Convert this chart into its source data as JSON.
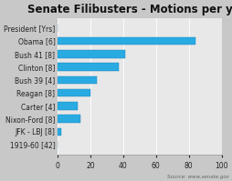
{
  "title": "Senate Filibusters - Motions per year",
  "categories": [
    "President [Yrs]",
    "Obama [6]",
    "Bush 41 [8]",
    "Clinton [8]",
    "Bush 39 [4]",
    "Reagan [8]",
    "Carter [4]",
    "Nixon-Ford [8]",
    "JFK - LBJ [8]",
    "1919-60 [42]"
  ],
  "values": [
    0,
    84,
    41,
    37,
    24,
    20,
    12,
    14,
    2,
    0
  ],
  "bar_color": "#29ABE2",
  "bar_edge_color": "#1A7DB5",
  "background_color": "#c8c8c8",
  "plot_bg_color": "#e8e8e8",
  "grid_color": "#ffffff",
  "xlim": [
    0,
    100
  ],
  "xticks": [
    0,
    20,
    40,
    60,
    80,
    100
  ],
  "title_fontsize": 8.5,
  "label_fontsize": 5.5,
  "tick_fontsize": 5.5,
  "source_text": "Source: www.senate.gov",
  "bar_height": 0.6
}
